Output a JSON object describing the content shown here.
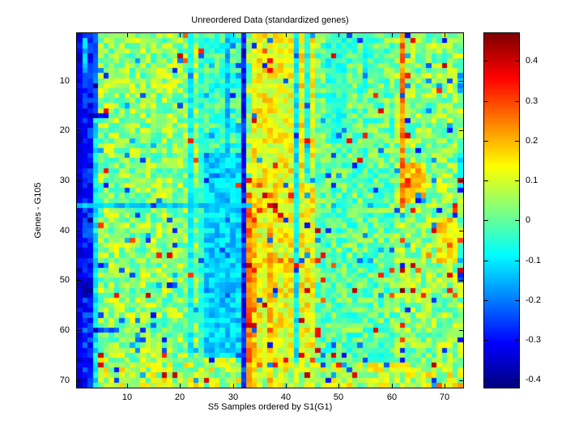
{
  "figure": {
    "background": "#ffffff"
  },
  "chart_data": {
    "type": "heatmap",
    "title": "Unreordered Data (standardized genes)",
    "xlabel": "S5 Samples ordered by S1(G1)",
    "ylabel": "Genes - G105",
    "n_cols": 73,
    "n_rows": 71,
    "x_range": [
      1,
      73
    ],
    "y_range": [
      1,
      71
    ],
    "x_ticks": [
      10,
      20,
      30,
      40,
      50,
      60,
      70
    ],
    "y_ticks": [
      10,
      20,
      30,
      40,
      50,
      60,
      70
    ],
    "colormap": "jet",
    "caxis": [
      -0.42,
      0.47
    ],
    "colorbar_position": "right",
    "colorbar_ticks": [
      {
        "v": 0.4,
        "label": "0.4"
      },
      {
        "v": 0.3,
        "label": "0.3"
      },
      {
        "v": 0.2,
        "label": "0.2"
      },
      {
        "v": 0.1,
        "label": "0.1"
      },
      {
        "v": 0.0,
        "label": "0"
      },
      {
        "v": -0.1,
        "label": "-0.1"
      },
      {
        "v": -0.2,
        "label": "-0.2"
      },
      {
        "v": -0.3,
        "label": "-0.3"
      },
      {
        "v": -0.4,
        "label": "-0.4"
      }
    ],
    "matrix_spec": {
      "comment": "71x73 standardized-expression field: base noise plus the visible column/row structures; zones applied in order, then random speckles, then explicit cells. r/c ranges are 1-indexed inclusive.",
      "seed": 1337,
      "zones": [
        {
          "r": [
            1,
            71
          ],
          "c": [
            1,
            73
          ],
          "mean": 0.04,
          "spread": 0.1
        },
        {
          "r": [
            1,
            71
          ],
          "c": [
            46,
            60
          ],
          "mean": 0.0,
          "spread": 0.09
        },
        {
          "r": [
            1,
            71
          ],
          "c": [
            34,
            45
          ],
          "mean": 0.13,
          "spread": 0.08
        },
        {
          "r": [
            1,
            24
          ],
          "c": [
            25,
            31
          ],
          "mean": -0.03,
          "spread": 0.08
        },
        {
          "r": [
            25,
            71
          ],
          "c": [
            25,
            31
          ],
          "mean": -0.12,
          "spread": 0.06
        },
        {
          "r": [
            1,
            24
          ],
          "c": [
            29,
            29
          ],
          "mean": -0.14,
          "spread": 0.05
        },
        {
          "r": [
            1,
            22
          ],
          "c": [
            48,
            51
          ],
          "mean": -0.05,
          "spread": 0.06
        },
        {
          "r": [
            2,
            12
          ],
          "c": [
            55,
            55
          ],
          "mean": -0.08,
          "spread": 0.05
        },
        {
          "r": [
            1,
            71
          ],
          "c": [
            42,
            42
          ],
          "mean": -0.1,
          "spread": 0.05
        },
        {
          "r": [
            1,
            30
          ],
          "c": [
            44,
            44
          ],
          "mean": -0.07,
          "spread": 0.05
        },
        {
          "r": [
            1,
            71
          ],
          "c": [
            22,
            22
          ],
          "mean": -0.08,
          "spread": 0.05
        },
        {
          "r": [
            1,
            71
          ],
          "c": [
            24,
            24
          ],
          "mean": -0.05,
          "spread": 0.05
        },
        {
          "r": [
            1,
            71
          ],
          "c": [
            4,
            4
          ],
          "mean": -0.1,
          "spread": 0.05
        },
        {
          "r": [
            1,
            16
          ],
          "c": [
            4,
            4
          ],
          "mean": -0.22,
          "spread": 0.05
        },
        {
          "r": [
            1,
            71
          ],
          "c": [
            1,
            3
          ],
          "mean": -0.28,
          "spread": 0.07
        },
        {
          "r": [
            1,
            71
          ],
          "c": [
            1,
            1
          ],
          "mean": -0.33,
          "spread": 0.05
        },
        {
          "r": [
            2,
            8
          ],
          "c": [
            2,
            2
          ],
          "mean": -0.14,
          "spread": 0.04
        },
        {
          "r": [
            66,
            71
          ],
          "c": [
            5,
            30
          ],
          "mean": 0.07,
          "spread": 0.12
        },
        {
          "r": [
            67,
            71
          ],
          "c": [
            31,
            73
          ],
          "mean": 0.08,
          "spread": 0.11
        },
        {
          "r": [
            1,
            71
          ],
          "c": [
            32,
            32
          ],
          "mean": -0.3,
          "spread": 0.07
        },
        {
          "r": [
            33,
            71
          ],
          "c": [
            33,
            33
          ],
          "mean": 0.26,
          "spread": 0.07
        },
        {
          "r": [
            33,
            71
          ],
          "c": [
            34,
            34
          ],
          "mean": 0.18,
          "spread": 0.07
        },
        {
          "r": [
            40,
            71
          ],
          "c": [
            37,
            37
          ],
          "mean": 0.2,
          "spread": 0.08
        },
        {
          "r": [
            1,
            35
          ],
          "c": [
            62,
            62
          ],
          "mean": 0.24,
          "spread": 0.07
        },
        {
          "r": [
            27,
            34
          ],
          "c": [
            63,
            66
          ],
          "mean": 0.18,
          "spread": 0.08
        },
        {
          "r": [
            38,
            46
          ],
          "c": [
            69,
            72
          ],
          "mean": 0.16,
          "spread": 0.08
        },
        {
          "r": [
            9,
            12
          ],
          "c": [
            73,
            73
          ],
          "mean": -0.16,
          "spread": 0.05
        },
        {
          "r": [
            25,
            32
          ],
          "c": [
            73,
            73
          ],
          "mean": -0.13,
          "spread": 0.06
        },
        {
          "r": [
            35,
            35
          ],
          "c": [
            1,
            33
          ],
          "mean": -0.13,
          "spread": 0.03
        },
        {
          "r": [
            17,
            17
          ],
          "c": [
            1,
            6
          ],
          "mean": -0.33,
          "spread": 0.05
        },
        {
          "r": [
            60,
            60
          ],
          "c": [
            1,
            8
          ],
          "mean": -0.24,
          "spread": 0.06
        },
        {
          "r": [
            50,
            53
          ],
          "c": [
            1,
            3
          ],
          "mean": -0.37,
          "spread": 0.04
        }
      ],
      "speckles": [
        {
          "r": [
            1,
            71
          ],
          "c": [
            5,
            73
          ],
          "prob": 0.015,
          "vmin": 0.28,
          "vmax": 0.42
        },
        {
          "r": [
            1,
            71
          ],
          "c": [
            5,
            73
          ],
          "prob": 0.035,
          "vmin": -0.3,
          "vmax": -0.14
        },
        {
          "r": [
            33,
            71
          ],
          "c": [
            34,
            50
          ],
          "prob": 0.05,
          "vmin": 0.25,
          "vmax": 0.42
        },
        {
          "r": [
            40,
            71
          ],
          "c": [
            60,
            73
          ],
          "prob": 0.04,
          "vmin": 0.22,
          "vmax": 0.4
        }
      ],
      "cells": [
        {
          "r": 11,
          "c": 4,
          "v": -0.41
        },
        {
          "r": 38,
          "c": 3,
          "v": -0.41
        },
        {
          "r": 60,
          "c": 4,
          "v": -0.38
        },
        {
          "r": 35,
          "c": 38,
          "v": 0.45
        },
        {
          "r": 47,
          "c": 33,
          "v": 0.43
        },
        {
          "r": 59,
          "c": 33,
          "v": 0.41
        },
        {
          "r": 52,
          "c": 53,
          "v": 0.42
        },
        {
          "r": 52,
          "c": 62,
          "v": 0.47
        },
        {
          "r": 67,
          "c": 68,
          "v": 0.42
        },
        {
          "r": 65,
          "c": 5,
          "v": 0.4
        },
        {
          "r": 45,
          "c": 18,
          "v": 0.38
        },
        {
          "r": 22,
          "c": 44,
          "v": 0.36
        },
        {
          "r": 30,
          "c": 63,
          "v": 0.34
        },
        {
          "r": 8,
          "c": 37,
          "v": 0.36
        },
        {
          "r": 52,
          "c": 44,
          "v": 0.4
        }
      ]
    }
  }
}
